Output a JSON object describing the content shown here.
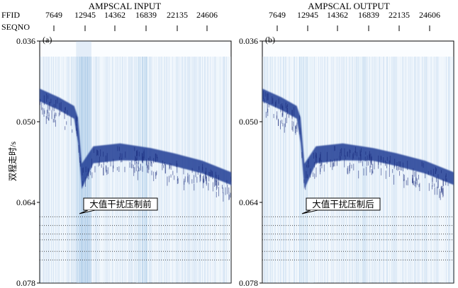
{
  "figure": {
    "y_axis_label": "双程走时/s",
    "header_labels": [
      "FFID",
      "SEQNO"
    ],
    "colors": {
      "background": "#ffffff",
      "noise_light": "#cfe3f3",
      "noise_mid": "#8cb7df",
      "reflector": "#1f3c95",
      "reflector_dark": "#15287a",
      "dotted_line": "#2a2a2a"
    }
  },
  "chart_data": [
    {
      "type": "heatmap",
      "panel_label": "(a)",
      "title": "AMPSCAL INPUT",
      "ffid_ticks": [
        "7649",
        "12945",
        "14362",
        "16839",
        "22135",
        "24606"
      ],
      "y_ticks": [
        "0.036",
        "0.050",
        "0.064",
        "0.078"
      ],
      "ylim": [
        0.078,
        0.036
      ],
      "ylabel": "双程走时/s",
      "annotation": "大值干扰压制前",
      "reflector_twt_s": [
        0.045,
        0.0465,
        0.048,
        0.05,
        0.058,
        0.055,
        0.0545,
        0.0553,
        0.0562,
        0.0575,
        0.0595
      ],
      "reflector_x_frac": [
        0,
        0.1,
        0.18,
        0.2,
        0.22,
        0.28,
        0.42,
        0.58,
        0.7,
        0.85,
        1.0
      ],
      "dotted_lines_twt_s": [
        0.0665,
        0.068,
        0.0695,
        0.0705,
        0.0725,
        0.074
      ]
    },
    {
      "type": "heatmap",
      "panel_label": "(b)",
      "title": "AMPSCAL OUTPUT",
      "ffid_ticks": [
        "7649",
        "12945",
        "14362",
        "16839",
        "22135",
        "24606"
      ],
      "y_ticks": [
        "0.036",
        "0.050",
        "0.064",
        "0.078"
      ],
      "ylim": [
        0.078,
        0.036
      ],
      "ylabel": "",
      "annotation": "大值干扰压制后",
      "reflector_twt_s": [
        0.045,
        0.0465,
        0.048,
        0.05,
        0.058,
        0.055,
        0.0545,
        0.0553,
        0.0562,
        0.0575,
        0.0595
      ],
      "reflector_x_frac": [
        0,
        0.1,
        0.18,
        0.2,
        0.22,
        0.28,
        0.42,
        0.58,
        0.7,
        0.85,
        1.0
      ],
      "dotted_lines_twt_s": [
        0.0665,
        0.068,
        0.0695,
        0.0705,
        0.0725,
        0.074
      ]
    }
  ]
}
